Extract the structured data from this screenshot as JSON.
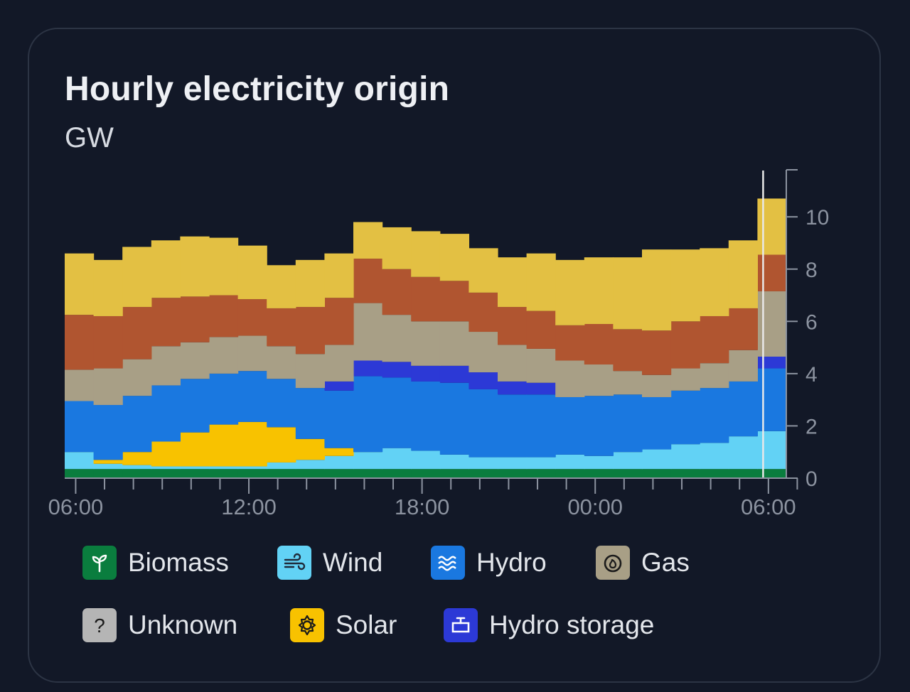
{
  "card": {
    "title": "Hourly electricity origin",
    "unit": "GW"
  },
  "colors": {
    "background": "#121827",
    "axis": "#8c93a0",
    "now_line": "#e8e8e8"
  },
  "legend": [
    {
      "key": "biomass",
      "label": "Biomass",
      "color": "#0a7d3e",
      "icon": "sprout-icon"
    },
    {
      "key": "wind",
      "label": "Wind",
      "color": "#62d2f5",
      "icon": "wind-icon"
    },
    {
      "key": "hydro",
      "label": "Hydro",
      "color": "#1a78e0",
      "icon": "waves-icon"
    },
    {
      "key": "gas",
      "label": "Gas",
      "color": "#a89f86",
      "icon": "flame-icon"
    },
    {
      "key": "unknown",
      "label": "Unknown",
      "color": "#b5b5b5",
      "icon": "question-icon"
    },
    {
      "key": "solar",
      "label": "Solar",
      "color": "#f8c200",
      "icon": "sun-icon"
    },
    {
      "key": "hydro_storage",
      "label": "Hydro storage",
      "color": "#2c39d6",
      "icon": "storage-icon"
    }
  ],
  "chart_data": {
    "type": "area",
    "title": "Hourly electricity origin",
    "ylabel": "GW",
    "ylim": [
      0,
      11.8
    ],
    "yticks": [
      0,
      2,
      4,
      6,
      8,
      10
    ],
    "x_tick_labels": [
      "06:00",
      "12:00",
      "18:00",
      "00:00",
      "06:00"
    ],
    "hours": 25,
    "now_index": 24.5,
    "series": [
      {
        "key": "biomass",
        "color": "#0a7d3e",
        "values": [
          0.35,
          0.35,
          0.35,
          0.35,
          0.35,
          0.35,
          0.35,
          0.35,
          0.35,
          0.35,
          0.35,
          0.35,
          0.35,
          0.35,
          0.35,
          0.35,
          0.35,
          0.35,
          0.35,
          0.35,
          0.35,
          0.35,
          0.35,
          0.35,
          0.35
        ]
      },
      {
        "key": "wind",
        "color": "#62d2f5",
        "values": [
          0.65,
          0.2,
          0.15,
          0.1,
          0.1,
          0.1,
          0.1,
          0.25,
          0.35,
          0.5,
          0.65,
          0.8,
          0.7,
          0.55,
          0.45,
          0.45,
          0.45,
          0.55,
          0.5,
          0.65,
          0.75,
          0.95,
          1.0,
          1.25,
          1.45
        ]
      },
      {
        "key": "solar",
        "color": "#f8c200",
        "values": [
          0,
          0.15,
          0.5,
          0.95,
          1.3,
          1.6,
          1.7,
          1.35,
          0.8,
          0.3,
          0,
          0,
          0,
          0,
          0,
          0,
          0,
          0,
          0,
          0,
          0,
          0,
          0,
          0,
          0
        ]
      },
      {
        "key": "hydro",
        "color": "#1a78e0",
        "values": [
          1.95,
          2.1,
          2.15,
          2.15,
          2.05,
          1.95,
          1.95,
          1.85,
          1.95,
          2.2,
          2.9,
          2.7,
          2.65,
          2.75,
          2.6,
          2.4,
          2.4,
          2.2,
          2.3,
          2.2,
          2.0,
          2.05,
          2.1,
          2.1,
          2.4
        ]
      },
      {
        "key": "hydro_storage",
        "color": "#2c39d6",
        "values": [
          0,
          0,
          0,
          0,
          0,
          0,
          0,
          0,
          0,
          0.35,
          0.6,
          0.6,
          0.6,
          0.65,
          0.65,
          0.5,
          0.45,
          0,
          0,
          0,
          0,
          0,
          0,
          0,
          0.45
        ]
      },
      {
        "key": "gas",
        "color": "#a89f86",
        "values": [
          1.2,
          1.4,
          1.4,
          1.5,
          1.4,
          1.4,
          1.35,
          1.25,
          1.3,
          1.4,
          2.2,
          1.8,
          1.7,
          1.7,
          1.55,
          1.4,
          1.3,
          1.4,
          1.2,
          0.9,
          0.85,
          0.85,
          0.95,
          1.2,
          2.5
        ]
      },
      {
        "key": "unknown",
        "color": "#b5b5b5",
        "values": [
          0,
          0,
          0,
          0,
          0,
          0,
          0,
          0,
          0,
          0,
          0,
          0,
          0,
          0,
          0,
          0,
          0,
          0,
          0,
          0,
          0,
          0,
          0,
          0,
          0
        ]
      },
      {
        "key": "other",
        "color": "#b05530",
        "values": [
          2.1,
          2.0,
          2.0,
          1.85,
          1.75,
          1.6,
          1.4,
          1.45,
          1.8,
          1.8,
          1.7,
          1.75,
          1.7,
          1.55,
          1.5,
          1.45,
          1.45,
          1.35,
          1.55,
          1.6,
          1.7,
          1.8,
          1.8,
          1.6,
          1.4
        ]
      },
      {
        "key": "other_2",
        "color": "#e3c043",
        "values": [
          2.35,
          2.15,
          2.3,
          2.2,
          2.3,
          2.2,
          2.05,
          1.65,
          1.8,
          1.7,
          1.4,
          1.6,
          1.75,
          1.8,
          1.7,
          1.9,
          2.2,
          2.5,
          2.55,
          2.75,
          3.1,
          2.75,
          2.6,
          2.6,
          2.15
        ]
      }
    ]
  }
}
